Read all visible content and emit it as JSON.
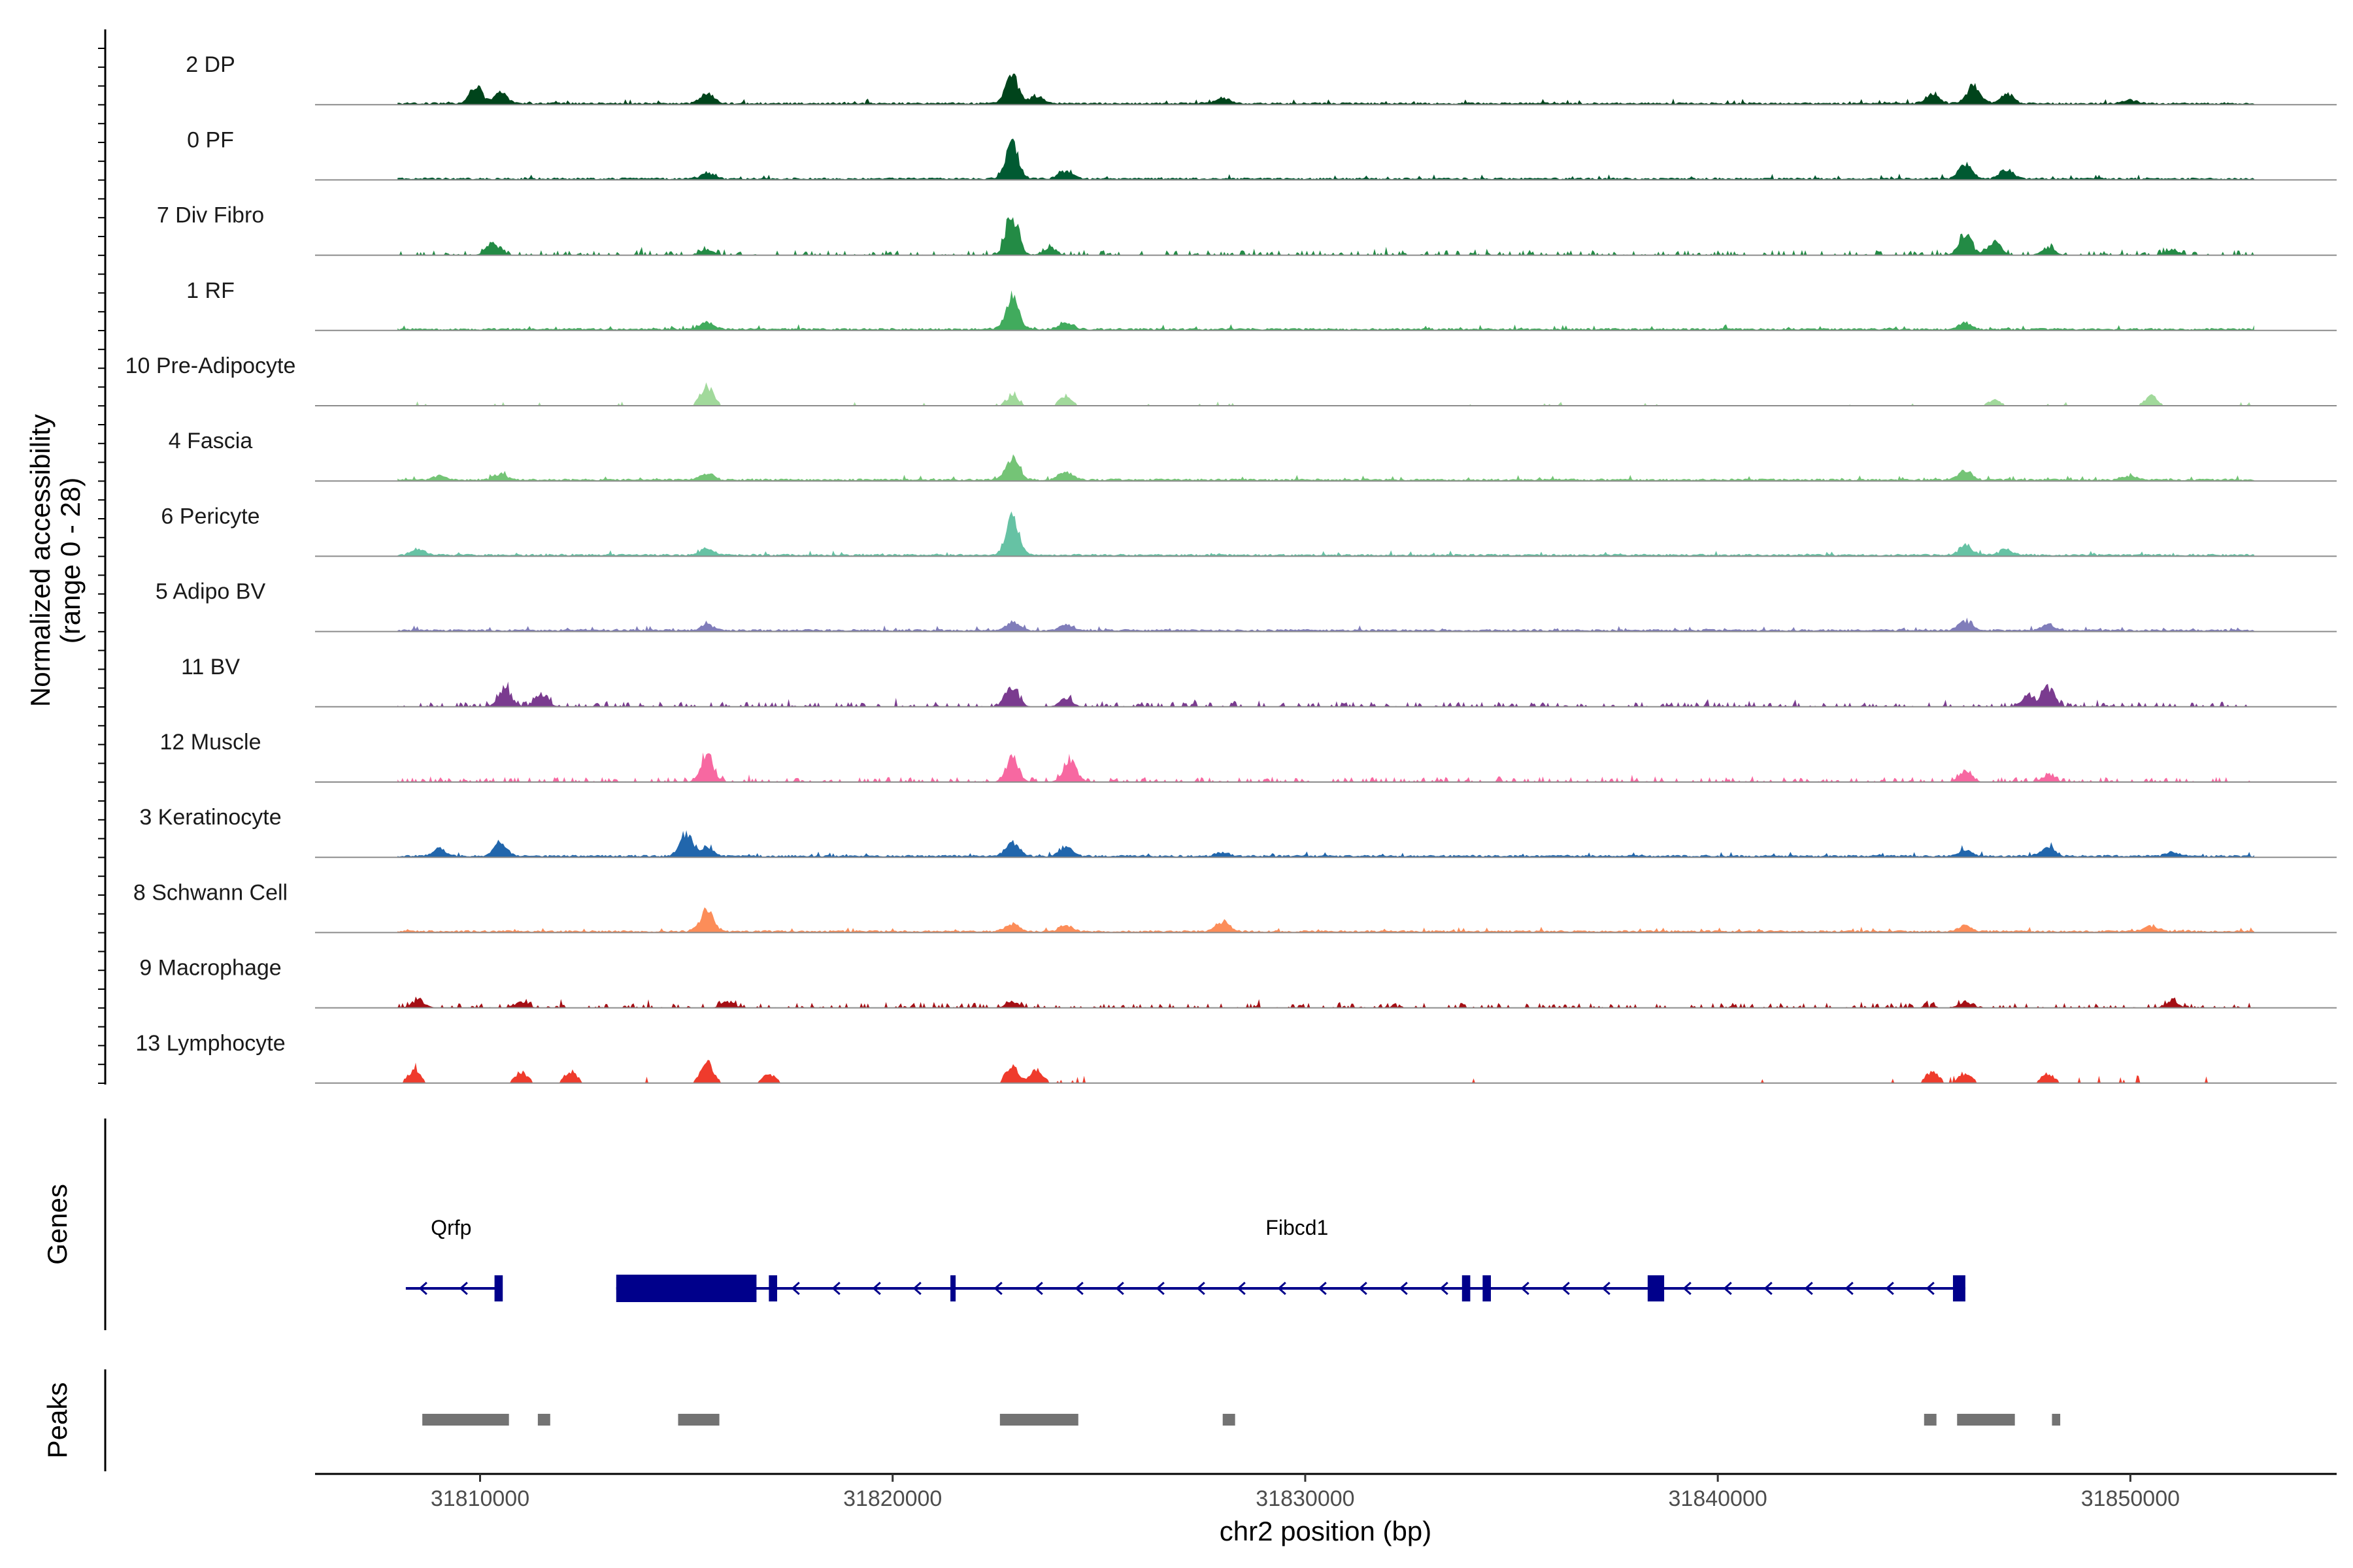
{
  "chart_data": {
    "type": "area",
    "title": "",
    "xlabel": "chr2 position (bp)",
    "ylabel": "Normalized accessibility",
    "ylabel_range": "(range 0 - 28)",
    "ylim": [
      0,
      28
    ],
    "xlim": [
      31806000,
      31855000
    ],
    "x_ticks": [
      31810000,
      31820000,
      31830000,
      31840000,
      31850000
    ],
    "x_tick_labels": [
      "31810000",
      "31820000",
      "31830000",
      "31840000",
      "31850000"
    ],
    "genes_label": "Genes",
    "peaks_label": "Peaks",
    "series": [
      {
        "name": "2 DP",
        "color": "#00441b",
        "style": "dense",
        "peaks": [
          [
            31809900,
            9
          ],
          [
            31810500,
            5
          ],
          [
            31815500,
            5
          ],
          [
            31822900,
            14
          ],
          [
            31823500,
            4
          ],
          [
            31828000,
            3
          ],
          [
            31845200,
            5
          ],
          [
            31846200,
            9
          ],
          [
            31847000,
            5
          ],
          [
            31850000,
            2
          ]
        ]
      },
      {
        "name": "0 PF",
        "color": "#005a32",
        "style": "dense",
        "peaks": [
          [
            31815500,
            3
          ],
          [
            31822900,
            18
          ],
          [
            31824200,
            4
          ],
          [
            31846000,
            8
          ],
          [
            31847000,
            5
          ]
        ]
      },
      {
        "name": "7 Div Fibro",
        "color": "#238b45",
        "style": "spiky",
        "peaks": [
          [
            31810300,
            6
          ],
          [
            31815500,
            3
          ],
          [
            31822900,
            20
          ],
          [
            31823800,
            4
          ],
          [
            31846000,
            11
          ],
          [
            31846700,
            7
          ],
          [
            31848000,
            4
          ],
          [
            31851000,
            3
          ]
        ]
      },
      {
        "name": "1 RF",
        "color": "#41ab5d",
        "style": "dense",
        "peaks": [
          [
            31815500,
            4
          ],
          [
            31822900,
            16
          ],
          [
            31824200,
            4
          ],
          [
            31846000,
            3
          ]
        ]
      },
      {
        "name": "10 Pre-Adipocyte",
        "color": "#a1d99b",
        "style": "sparse",
        "peaks": [
          [
            31815500,
            10
          ],
          [
            31822900,
            5
          ],
          [
            31824200,
            5
          ],
          [
            31846700,
            3
          ],
          [
            31850500,
            5
          ]
        ]
      },
      {
        "name": "4 Fascia",
        "color": "#74c476",
        "style": "dense",
        "peaks": [
          [
            31809000,
            2
          ],
          [
            31810500,
            3
          ],
          [
            31815500,
            3
          ],
          [
            31822900,
            11
          ],
          [
            31824200,
            4
          ],
          [
            31846000,
            5
          ],
          [
            31850000,
            2
          ]
        ]
      },
      {
        "name": "6 Pericyte",
        "color": "#66c2a4",
        "style": "dense",
        "peaks": [
          [
            31808500,
            3
          ],
          [
            31815500,
            3
          ],
          [
            31822900,
            18
          ],
          [
            31846000,
            5
          ],
          [
            31847000,
            3
          ]
        ]
      },
      {
        "name": "5 Adipo BV",
        "color": "#807dba",
        "style": "dense",
        "peaks": [
          [
            31815500,
            3
          ],
          [
            31822900,
            4
          ],
          [
            31824200,
            3
          ],
          [
            31846000,
            5
          ],
          [
            31848000,
            3
          ]
        ]
      },
      {
        "name": "11 BV",
        "color": "#7a3b8f",
        "style": "spiky",
        "peaks": [
          [
            31810600,
            10
          ],
          [
            31811500,
            6
          ],
          [
            31822900,
            10
          ],
          [
            31824200,
            4
          ],
          [
            31847500,
            5
          ],
          [
            31848000,
            10
          ]
        ]
      },
      {
        "name": "12 Muscle",
        "color": "#f768a1",
        "style": "spiky",
        "peaks": [
          [
            31815500,
            14
          ],
          [
            31822900,
            12
          ],
          [
            31824300,
            12
          ],
          [
            31846000,
            5
          ],
          [
            31848000,
            3
          ]
        ]
      },
      {
        "name": "3 Keratinocyte",
        "color": "#2166ac",
        "style": "dense",
        "peaks": [
          [
            31809000,
            4
          ],
          [
            31810500,
            7
          ],
          [
            31815000,
            12
          ],
          [
            31815500,
            4
          ],
          [
            31822900,
            7
          ],
          [
            31824200,
            5
          ],
          [
            31828000,
            2
          ],
          [
            31846000,
            3
          ],
          [
            31848000,
            5
          ],
          [
            31851000,
            2
          ]
        ]
      },
      {
        "name": "8 Schwann Cell",
        "color": "#fc8d59",
        "style": "dense",
        "peaks": [
          [
            31815500,
            11
          ],
          [
            31822900,
            4
          ],
          [
            31824200,
            3
          ],
          [
            31828000,
            5
          ],
          [
            31846000,
            3
          ],
          [
            31850500,
            3
          ]
        ]
      },
      {
        "name": "9 Macrophage",
        "color": "#a50f15",
        "style": "spiky",
        "peaks": [
          [
            31808500,
            4
          ],
          [
            31811000,
            3
          ],
          [
            31816000,
            3
          ],
          [
            31822900,
            3
          ],
          [
            31846000,
            3
          ],
          [
            31851000,
            3
          ]
        ]
      },
      {
        "name": "13 Lymphocyte",
        "color": "#ef3b2c",
        "style": "blocky",
        "peaks": [
          [
            31808400,
            6
          ],
          [
            31811000,
            6
          ],
          [
            31812200,
            6
          ],
          [
            31815500,
            10
          ],
          [
            31817000,
            5
          ],
          [
            31822900,
            9
          ],
          [
            31823500,
            7
          ],
          [
            31845200,
            6
          ],
          [
            31846000,
            5
          ],
          [
            31848000,
            5
          ]
        ]
      }
    ],
    "genes": [
      {
        "name": "Qrfp",
        "start": 31808200,
        "end": 31810500,
        "strand": "-",
        "exons": [
          [
            31810350,
            31810550
          ]
        ],
        "color": "#00008b"
      },
      {
        "name": "Fibcd1",
        "start": 31813300,
        "end": 31846000,
        "strand": "-",
        "exons": [
          [
            31813300,
            31816700
          ],
          [
            31817000,
            31817200
          ],
          [
            31821400,
            31821500
          ],
          [
            31833800,
            31834000
          ],
          [
            31834300,
            31834500
          ],
          [
            31838300,
            31838700
          ],
          [
            31845700,
            31846000
          ]
        ],
        "color": "#00008b"
      }
    ],
    "peaks": [
      [
        31808600,
        31810700
      ],
      [
        31811400,
        31811700
      ],
      [
        31814800,
        31815800
      ],
      [
        31822600,
        31824500
      ],
      [
        31828000,
        31828300
      ],
      [
        31845000,
        31845300
      ],
      [
        31845800,
        31847200
      ],
      [
        31848100,
        31848300
      ]
    ],
    "peak_color": "#737373"
  }
}
